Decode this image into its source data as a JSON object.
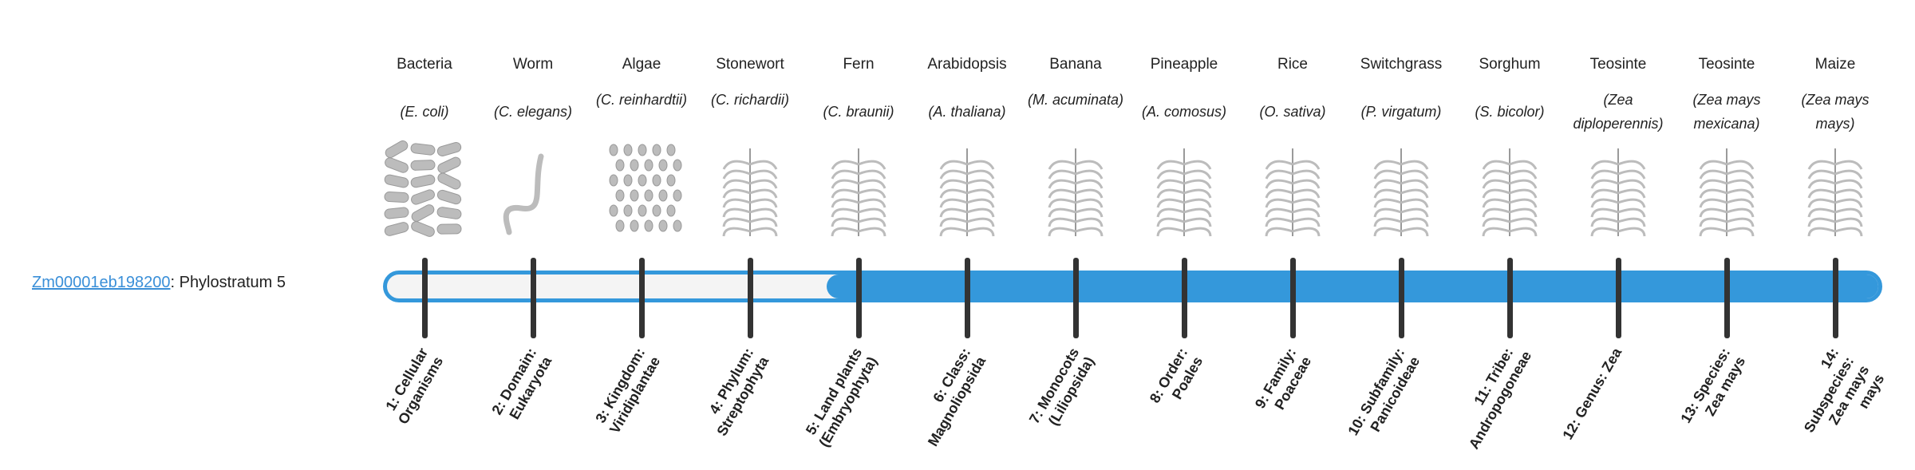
{
  "gene": {
    "id": "Zm00001eb198200",
    "suffix": ": Phylostratum 5",
    "phylostratum": 5,
    "total_strata": 14
  },
  "colors": {
    "accent": "#3498db",
    "tick": "#333333",
    "track": "#f4f4f4"
  },
  "organisms": [
    {
      "common": "Bacteria",
      "sci": "(E. coli)",
      "icon": "bacteria-icon",
      "stratum": "1: Cellular Organisms"
    },
    {
      "common": "Worm",
      "sci": "(C. elegans)",
      "icon": "worm-icon",
      "stratum": "2: Domain: Eukaryota"
    },
    {
      "common": "Algae",
      "sci": "(C. reinhardtii)",
      "icon": "algae-icon",
      "stratum": "3: Kingdom: Viridiplantae"
    },
    {
      "common": "Stonewort",
      "sci": "(C. richardii)",
      "icon": "stonewort-icon",
      "stratum": "4: Phylum: Streptophyta"
    },
    {
      "common": "Fern",
      "sci": "(C. braunii)",
      "icon": "fern-icon",
      "stratum": "5: Land plants (Embryophyta)"
    },
    {
      "common": "Arabidopsis",
      "sci": "(A. thaliana)",
      "icon": "arabidopsis-icon",
      "stratum": "6: Class: Magnoliopsida"
    },
    {
      "common": "Banana",
      "sci": "(M. acuminata)",
      "icon": "banana-icon",
      "stratum": "7: Monocots (Liliopsida)"
    },
    {
      "common": "Pineapple",
      "sci": "(A. comosus)",
      "icon": "pineapple-icon",
      "stratum": "8: Order: Poales"
    },
    {
      "common": "Rice",
      "sci": "(O. sativa)",
      "icon": "rice-icon",
      "stratum": "9: Family: Poaceae"
    },
    {
      "common": "Switchgrass",
      "sci": "(P. virgatum)",
      "icon": "switchgrass-icon",
      "stratum": "10: Subfamily: Panicoideae"
    },
    {
      "common": "Sorghum",
      "sci": "(S. bicolor)",
      "icon": "sorghum-icon",
      "stratum": "11: Tribe: Andropogoneae"
    },
    {
      "common": "Teosinte",
      "sci": "(Zea diploperennis)",
      "icon": "teosinte-icon",
      "stratum": "12: Genus: Zea"
    },
    {
      "common": "Teosinte",
      "sci": "(Zea mays mexicana)",
      "icon": "teosinte-icon",
      "stratum": "13: Species: Zea mays"
    },
    {
      "common": "Maize",
      "sci": "(Zea mays mays)",
      "icon": "maize-icon",
      "stratum": "14: Subspecies: Zea mays mays"
    }
  ]
}
